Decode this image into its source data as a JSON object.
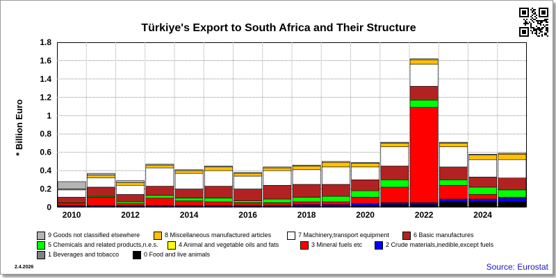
{
  "title": "Türkiye's Export to South Africa and Their Structure",
  "ylabel": "* Billion Euro",
  "date_label": "2.4.2026",
  "source": "Source: Eurostat",
  "chart_data": {
    "type": "bar",
    "stacked": true,
    "title": "Türkiye's Export to South Africa and Their Structure",
    "ylabel": "* Billion Euro",
    "xlabel": "",
    "ylim": [
      0,
      1.8
    ],
    "yticks": [
      0,
      0.2,
      0.4,
      0.6,
      0.8,
      1,
      1.2,
      1.4,
      1.6,
      1.8
    ],
    "ytick_labels": [
      "0",
      "0.2",
      "0.4",
      "0.6",
      "0.8",
      "1",
      "1.2",
      "1.4",
      "1.6",
      "1.8"
    ],
    "categories": [
      "2010",
      "2011",
      "2012",
      "2013",
      "2014",
      "2015",
      "2016",
      "2017",
      "2018",
      "2019",
      "2020",
      "2021",
      "2022",
      "2023",
      "2024",
      "2025"
    ],
    "xtick_labels": [
      "2010",
      "2012",
      "2014",
      "2016",
      "2018",
      "2020",
      "2022",
      "2024"
    ],
    "grid": true,
    "legend_position": "bottom",
    "series": [
      {
        "name": "0 Food and live animals",
        "color": "#000000",
        "values": [
          0.01,
          0.01,
          0.01,
          0.01,
          0.01,
          0.01,
          0.01,
          0.01,
          0.01,
          0.01,
          0.02,
          0.03,
          0.03,
          0.06,
          0.06,
          0.06
        ]
      },
      {
        "name": "1 Beverages and tobacco",
        "color": "#808080",
        "values": [
          0,
          0,
          0,
          0,
          0,
          0,
          0,
          0,
          0,
          0,
          0,
          0,
          0,
          0,
          0,
          0
        ]
      },
      {
        "name": "2 Crude materials,inedible,except fuels",
        "color": "#0000ff",
        "values": [
          0.01,
          0.01,
          0.01,
          0.01,
          0.01,
          0.01,
          0.01,
          0.01,
          0.02,
          0.02,
          0.02,
          0.02,
          0.02,
          0.03,
          0.03,
          0.04
        ]
      },
      {
        "name": "3 Mineral fuels etc",
        "color": "#ff0000",
        "values": [
          0.02,
          0.09,
          0.02,
          0.08,
          0.05,
          0.04,
          0.03,
          0.03,
          0.03,
          0.03,
          0.07,
          0.17,
          1.04,
          0.15,
          0.05,
          0.01
        ]
      },
      {
        "name": "4 Animal and vegetable oils and fats",
        "color": "#ffff00",
        "values": [
          0,
          0,
          0,
          0,
          0,
          0,
          0,
          0,
          0,
          0,
          0,
          0,
          0,
          0,
          0,
          0
        ]
      },
      {
        "name": "5 Chemicals and related products,n.e.s.",
        "color": "#00ff00",
        "values": [
          0.01,
          0.01,
          0.02,
          0.03,
          0.03,
          0.04,
          0.02,
          0.04,
          0.05,
          0.06,
          0.07,
          0.08,
          0.08,
          0.06,
          0.08,
          0.08
        ]
      },
      {
        "name": "6 Basic manufactures",
        "color": "#b22222",
        "values": [
          0.06,
          0.1,
          0.08,
          0.1,
          0.1,
          0.13,
          0.13,
          0.15,
          0.14,
          0.13,
          0.12,
          0.15,
          0.15,
          0.14,
          0.11,
          0.13
        ]
      },
      {
        "name": "7 Machinery,transport equipment",
        "color": "#ffffff",
        "values": [
          0.08,
          0.1,
          0.1,
          0.2,
          0.17,
          0.17,
          0.14,
          0.16,
          0.16,
          0.19,
          0.14,
          0.21,
          0.24,
          0.22,
          0.19,
          0.2
        ]
      },
      {
        "name": "8 Miscellaneous manufactured articles",
        "color": "#ffc000",
        "values": [
          0.01,
          0.03,
          0.03,
          0.03,
          0.03,
          0.04,
          0.03,
          0.03,
          0.04,
          0.05,
          0.04,
          0.04,
          0.05,
          0.04,
          0.05,
          0.06
        ]
      },
      {
        "name": "9 Goods not classified elsewhere",
        "color": "#b4b4b4",
        "values": [
          0.08,
          0.02,
          0.02,
          0.01,
          0.01,
          0.01,
          0.01,
          0.01,
          0.01,
          0.01,
          0.01,
          0.01,
          0.01,
          0.01,
          0.01,
          0.01
        ]
      }
    ],
    "legend_order": [
      "9 Goods not classified elsewhere",
      "8 Miscellaneous manufactured articles",
      "7 Machinery,transport equipment",
      "6 Basic manufactures",
      "5 Chemicals and related products,n.e.s.",
      "4 Animal and vegetable oils and fats",
      "3 Mineral fuels etc",
      "2 Crude materials,inedible,except fuels",
      "1 Beverages and tobacco",
      "0 Food and live animals"
    ]
  }
}
